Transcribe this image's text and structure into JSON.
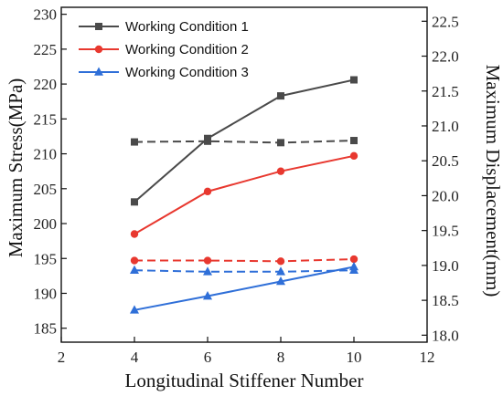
{
  "chart_data": {
    "type": "line",
    "xlabel": "Longitudinal Stiffener Number",
    "ylabel_left": "Maximum Stress(MPa)",
    "ylabel_right": "Maximum Displacement(mm)",
    "x_ticks": [
      2,
      4,
      6,
      8,
      10,
      12
    ],
    "xlim": [
      2,
      12
    ],
    "y_left_ticks": [
      185,
      190,
      195,
      200,
      205,
      210,
      215,
      220,
      225,
      230
    ],
    "ylim_left": [
      183,
      231
    ],
    "y_right_ticks": [
      "18.0",
      "18.5",
      "19.0",
      "19.5",
      "20.0",
      "20.5",
      "21.0",
      "21.5",
      "22.0",
      "22.5"
    ],
    "ylim_right": [
      17.9,
      22.7
    ],
    "grid": false,
    "legend_position": "top-left",
    "series": [
      {
        "name": "Working Condition 1",
        "color": "#4a4a4a",
        "marker": "square",
        "x": [
          4,
          6,
          8,
          10
        ],
        "stress": [
          203.1,
          212.2,
          218.3,
          220.6
        ],
        "displacement": [
          20.77,
          20.78,
          20.76,
          20.79
        ]
      },
      {
        "name": "Working Condition 2",
        "color": "#e8382f",
        "marker": "circle",
        "x": [
          4,
          6,
          8,
          10
        ],
        "stress": [
          198.5,
          204.6,
          207.5,
          209.7
        ],
        "displacement": [
          19.07,
          19.07,
          19.06,
          19.09
        ]
      },
      {
        "name": "Working Condition 3",
        "color": "#2f6fd8",
        "marker": "triangle",
        "x": [
          4,
          6,
          8,
          10
        ],
        "stress": [
          187.6,
          189.6,
          191.7,
          193.8
        ],
        "displacement": [
          18.93,
          18.91,
          18.91,
          18.93
        ]
      }
    ]
  }
}
